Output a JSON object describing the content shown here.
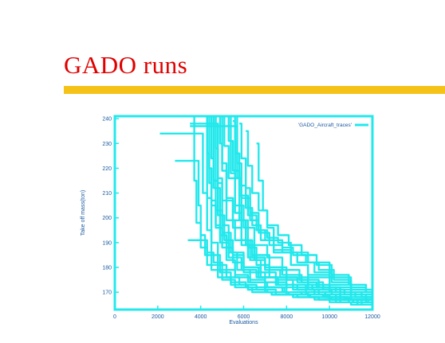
{
  "slide": {
    "title": "GADO runs",
    "accent_color": "#f5c218",
    "title_color": "#e00000"
  },
  "chart_data": {
    "type": "line",
    "title": "",
    "xlabel": "Evaluations",
    "ylabel": "Take off mass(ton)",
    "xlim": [
      0,
      12000
    ],
    "ylim": [
      163,
      241
    ],
    "x_ticks": [
      0,
      2000,
      4000,
      6000,
      8000,
      10000,
      12000
    ],
    "y_ticks": [
      170,
      180,
      190,
      200,
      210,
      220,
      230,
      240
    ],
    "legend": {
      "label": "'GADO_Aircraft_traces'",
      "position": "top-right"
    },
    "grid": false,
    "color": "#22e8ec",
    "series": [
      {
        "x": [
          4200,
          4300,
          4400,
          4500,
          4700,
          5000,
          5500,
          6000,
          7000,
          8000,
          9000,
          10000,
          11000,
          12000
        ],
        "y": [
          241,
          226,
          214,
          205,
          196,
          188,
          182,
          178,
          174,
          172,
          171,
          170,
          169,
          168
        ]
      },
      {
        "x": [
          4400,
          4500,
          4600,
          4700,
          5000,
          5400,
          6000,
          6800,
          7600,
          8500,
          9500,
          10500,
          12000
        ],
        "y": [
          241,
          224,
          212,
          203,
          194,
          186,
          180,
          176,
          173,
          171,
          170,
          168,
          167
        ]
      },
      {
        "x": [
          4600,
          4700,
          4800,
          5000,
          5200,
          5600,
          6200,
          7000,
          8000,
          9000,
          10000,
          11000,
          12000
        ],
        "y": [
          241,
          228,
          216,
          207,
          199,
          191,
          184,
          179,
          175,
          172,
          170,
          168,
          167
        ]
      },
      {
        "x": [
          4800,
          4900,
          5000,
          5200,
          5500,
          5900,
          6400,
          7200,
          8000,
          9000,
          10000,
          11000,
          12000
        ],
        "y": [
          241,
          230,
          219,
          208,
          199,
          191,
          185,
          180,
          176,
          173,
          171,
          169,
          168
        ]
      },
      {
        "x": [
          5000,
          5100,
          5300,
          5600,
          6000,
          6500,
          7100,
          7800,
          8600,
          9500,
          10500,
          11500,
          12000
        ],
        "y": [
          241,
          229,
          216,
          205,
          196,
          189,
          184,
          179,
          175,
          172,
          170,
          168,
          167
        ]
      },
      {
        "x": [
          5200,
          5300,
          5500,
          5800,
          6200,
          6600,
          7000,
          7400,
          8200,
          9000,
          10000,
          11000,
          12000
        ],
        "y": [
          241,
          231,
          219,
          209,
          201,
          195,
          191,
          187,
          181,
          176,
          172,
          169,
          168
        ]
      },
      {
        "x": [
          5500,
          5600,
          5800,
          6100,
          6400,
          6800,
          7400,
          8200,
          9000,
          10000,
          11000,
          12000
        ],
        "y": [
          241,
          226,
          213,
          204,
          197,
          191,
          186,
          181,
          177,
          173,
          170,
          168
        ]
      },
      {
        "x": [
          5800,
          5900,
          6100,
          6300,
          6700,
          7100,
          7600,
          8200,
          9000,
          10000,
          11000,
          12000
        ],
        "y": [
          238,
          224,
          212,
          202,
          195,
          192,
          190,
          186,
          182,
          176,
          171,
          169
        ]
      },
      {
        "x": [
          4300,
          4400,
          4500,
          4700,
          4900,
          5300,
          5900,
          6600,
          7500,
          8500,
          9500,
          10500,
          11500,
          12000
        ],
        "y": [
          241,
          220,
          207,
          197,
          190,
          184,
          179,
          176,
          173,
          171,
          169,
          167,
          166,
          165
        ]
      },
      {
        "x": [
          4500,
          4600,
          4800,
          5100,
          5500,
          6000,
          6700,
          7500,
          8300,
          9300,
          10300,
          11300,
          12000
        ],
        "y": [
          241,
          215,
          201,
          191,
          185,
          180,
          176,
          173,
          171,
          169,
          167,
          166,
          165
        ]
      },
      {
        "x": [
          4900,
          5000,
          5200,
          5500,
          5900,
          6400,
          7000,
          7800,
          8700,
          9700,
          10700,
          11700,
          12000
        ],
        "y": [
          241,
          222,
          207,
          196,
          189,
          184,
          180,
          177,
          174,
          171,
          169,
          167,
          166
        ]
      },
      {
        "x": [
          5600,
          5700,
          5900,
          6300,
          6700,
          7200,
          7800,
          8500,
          9300,
          10100,
          11000,
          12000
        ],
        "y": [
          241,
          222,
          208,
          199,
          194,
          189,
          186,
          182,
          178,
          174,
          171,
          169
        ]
      },
      {
        "x": [
          6100,
          6200,
          6400,
          6700,
          7100,
          7600,
          8100,
          8700,
          9400,
          10100,
          10900,
          11700,
          12000
        ],
        "y": [
          235,
          221,
          210,
          203,
          197,
          193,
          189,
          185,
          181,
          177,
          173,
          170,
          169
        ]
      },
      {
        "x": [
          6600,
          6700,
          6900,
          7100,
          7400,
          7800,
          8300,
          8900,
          9500,
          10200,
          11000,
          11700,
          12000
        ],
        "y": [
          230,
          215,
          203,
          196,
          191,
          188,
          185,
          182,
          179,
          175,
          172,
          170,
          169
        ]
      },
      {
        "x": [
          5300,
          5400,
          5600,
          5900,
          6300,
          6800,
          7500,
          8300,
          9200,
          10100,
          11000,
          12000
        ],
        "y": [
          241,
          218,
          202,
          191,
          183,
          178,
          175,
          173,
          171,
          169,
          167,
          166
        ]
      },
      {
        "x": [
          3400,
          4100,
          4300,
          4600,
          5000,
          5600,
          6300,
          7100,
          8000,
          9000,
          10000,
          11000,
          12000
        ],
        "y": [
          191,
          191,
          186,
          182,
          179,
          176,
          174,
          172,
          170,
          169,
          168,
          167,
          166
        ]
      },
      {
        "x": [
          2800,
          3800,
          3900,
          4000,
          4200,
          4500,
          5000,
          5600,
          6400,
          7300,
          8300,
          9300,
          10300,
          11300,
          12000
        ],
        "y": [
          223,
          223,
          205,
          193,
          185,
          179,
          175,
          172,
          170,
          169,
          168,
          167,
          166,
          165,
          164
        ]
      },
      {
        "x": [
          2100,
          4000,
          4100,
          4300,
          4500,
          4900,
          5400,
          6100,
          7000,
          8000,
          9000,
          10000,
          11000,
          12000
        ],
        "y": [
          234,
          234,
          210,
          195,
          185,
          178,
          174,
          172,
          170,
          169,
          168,
          166,
          165,
          164
        ]
      },
      {
        "x": [
          3500,
          4700,
          4800,
          5000,
          5300,
          5700,
          6300,
          7000,
          7800,
          8700,
          9700,
          10700,
          11700,
          12000
        ],
        "y": [
          238,
          238,
          214,
          197,
          186,
          179,
          175,
          172,
          170,
          169,
          168,
          167,
          166,
          165
        ]
      },
      {
        "x": [
          3500,
          5600,
          5700,
          5900,
          6200,
          6600,
          7200,
          8000,
          8900,
          9800,
          10800,
          11800,
          12000
        ],
        "y": [
          237,
          237,
          216,
          199,
          188,
          181,
          176,
          173,
          170,
          168,
          167,
          166,
          165
        ]
      },
      {
        "x": [
          3300,
          3600,
          3700,
          3800,
          4000,
          4300,
          4800,
          5400,
          6200,
          7100,
          8100,
          9100,
          10100,
          11100,
          12000
        ],
        "y": [
          241,
          241,
          215,
          198,
          188,
          181,
          176,
          173,
          171,
          170,
          169,
          168,
          167,
          166,
          165
        ]
      },
      {
        "x": [
          5500,
          5600,
          5800,
          6100,
          6500,
          7000,
          7700,
          8500,
          9400,
          10300,
          11200,
          12000
        ],
        "y": [
          239,
          216,
          199,
          189,
          183,
          179,
          176,
          174,
          172,
          170,
          168,
          167
        ]
      },
      {
        "x": [
          4200,
          4300,
          4500,
          4800,
          5200,
          5800,
          6600,
          7500,
          8500,
          9500,
          10500,
          11500,
          12000
        ],
        "y": [
          241,
          208,
          190,
          181,
          176,
          173,
          171,
          169,
          168,
          167,
          166,
          165,
          164
        ]
      },
      {
        "x": [
          4600,
          4700,
          4900,
          5200,
          5600,
          6200,
          7000,
          7900,
          8900,
          9900,
          10900,
          12000
        ],
        "y": [
          241,
          212,
          193,
          183,
          177,
          174,
          172,
          170,
          169,
          168,
          166,
          165
        ]
      }
    ]
  }
}
